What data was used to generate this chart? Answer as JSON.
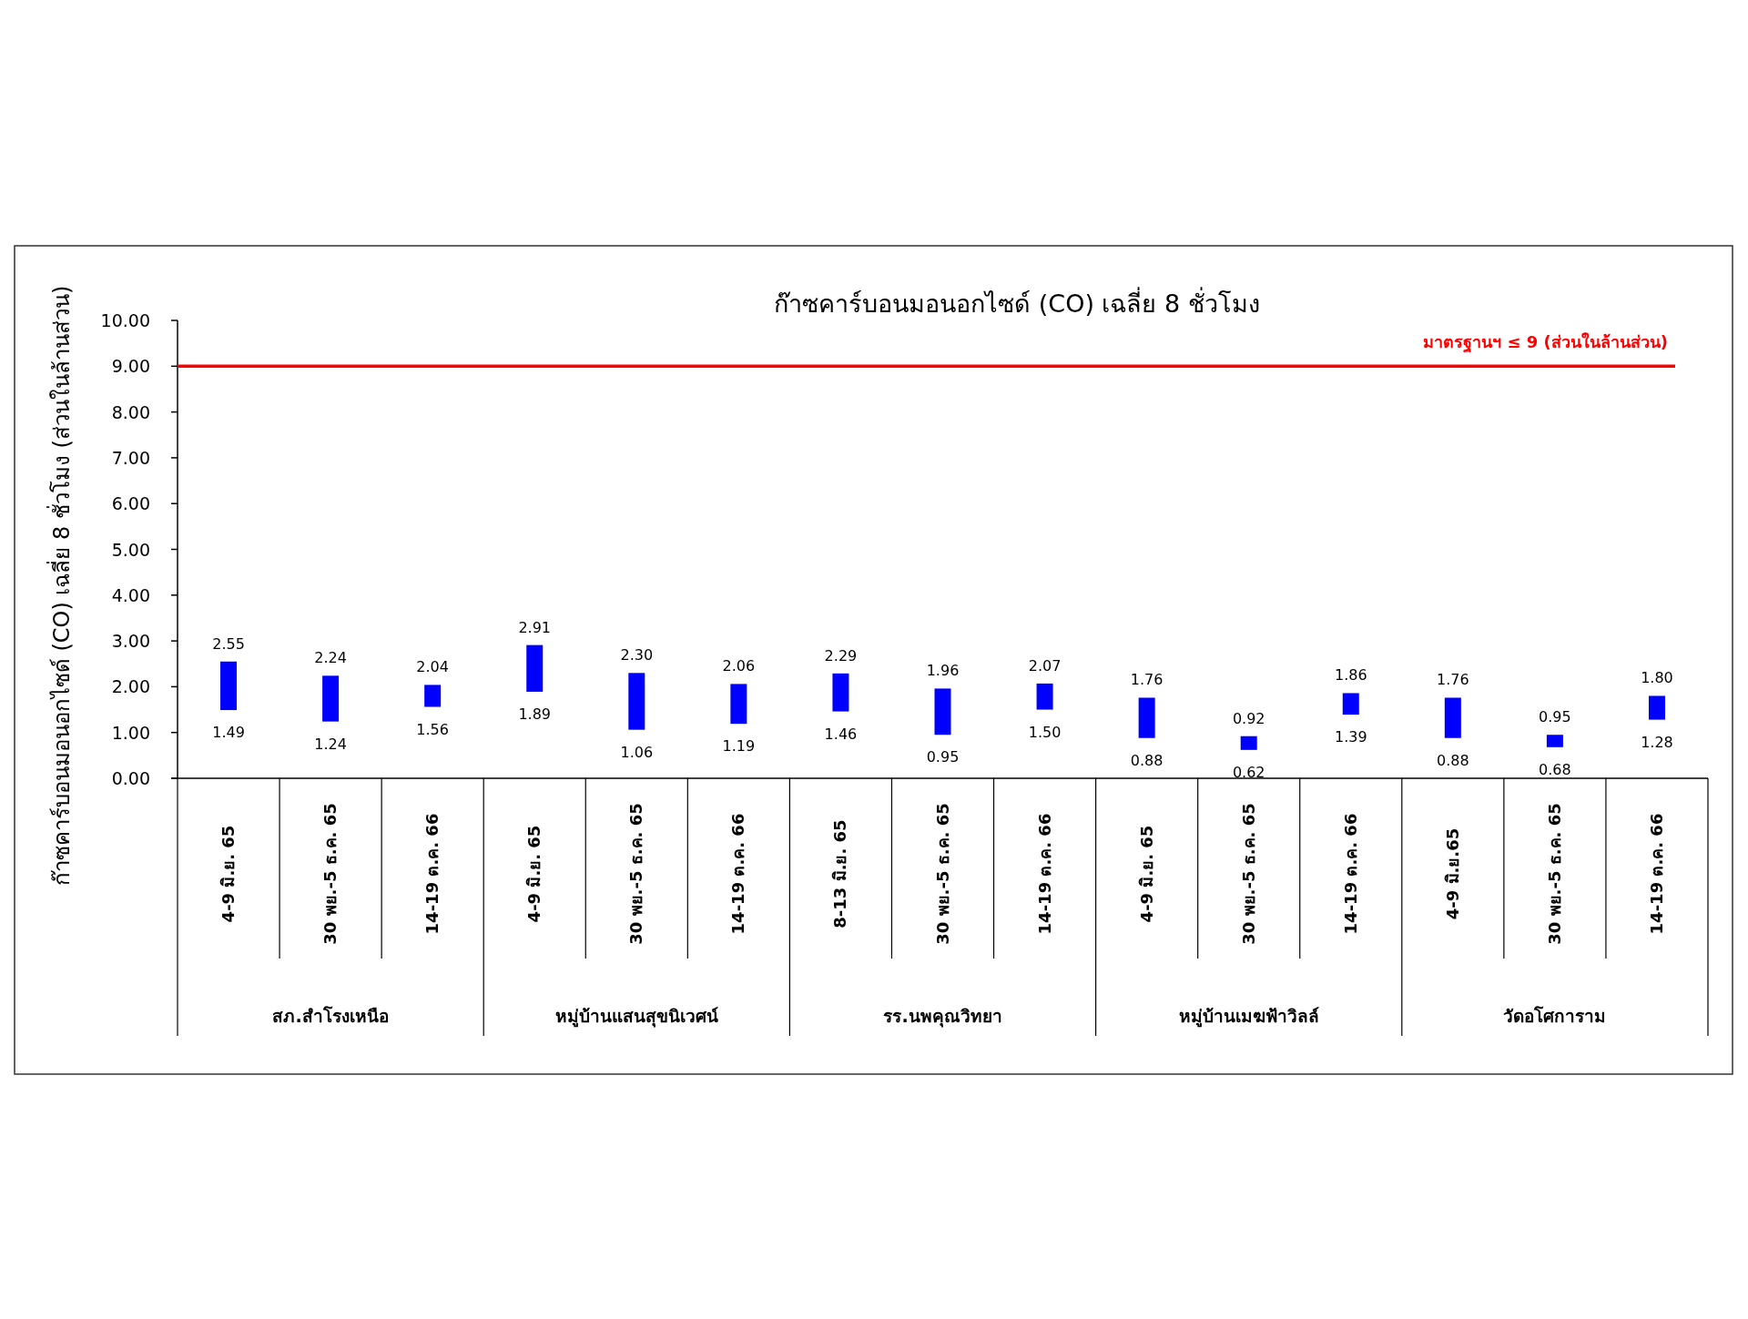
{
  "chart_data": {
    "type": "bar",
    "title": "ก๊าซคาร์บอนมอนอกไซด์ (CO) เฉลี่ย 8 ชั่วโมง",
    "ylabel": "ก๊าซคาร์บอนมอนอกไซด์ (CO) เฉลี่ย 8 ชั่วโมง (ส่วนในล้านส่วน)",
    "categories": [
      "4-9 มิ.ย. 65",
      "30 พย.-5 ธ.ค. 65",
      "14-19 ต.ค. 66",
      "4-9 มิ.ย. 65",
      "30 พย.-5 ธ.ค. 65",
      "14-19 ต.ค. 66",
      "8-13 มิ.ย. 65",
      "30 พย.-5 ธ.ค. 65",
      "14-19 ต.ค. 66",
      "4-9 มิ.ย. 65",
      "30 พย.-5 ธ.ค. 65",
      "14-19 ต.ค. 66",
      "4-9 มิ.ย.65",
      "30 พย.-5 ธ.ค. 65",
      "14-19 ต.ค. 66"
    ],
    "base": [
      1.49,
      1.24,
      1.56,
      1.89,
      1.06,
      1.19,
      1.46,
      0.95,
      1.5,
      0.88,
      0.62,
      1.39,
      0.88,
      0.68,
      1.28
    ],
    "values": [
      1.06,
      1.0,
      0.48,
      1.02,
      1.24,
      0.87,
      0.83,
      1.01,
      0.57,
      0.88,
      0.3,
      0.47,
      0.88,
      0.27,
      0.52
    ],
    "value_labels": [
      "2.55",
      "2.24",
      "2.04",
      "2.91",
      "2.30",
      "2.06",
      "2.29",
      "1.96",
      "2.07",
      "1.76",
      "0.92",
      "1.86",
      "1.76",
      "0.95",
      "1.80"
    ],
    "color": "#0000ff",
    "ylim": [
      0,
      10
    ],
    "yticks": [
      {
        "value": 0,
        "label": "0.00"
      },
      {
        "value": 1,
        "label": "1.00"
      },
      {
        "value": 2,
        "label": "2.00"
      },
      {
        "value": 3,
        "label": "3.00"
      },
      {
        "value": 4,
        "label": "4.00"
      },
      {
        "value": 5,
        "label": "5.00"
      },
      {
        "value": 6,
        "label": "6.00"
      },
      {
        "value": 7,
        "label": "7.00"
      },
      {
        "value": 8,
        "label": "8.00"
      },
      {
        "value": 9,
        "label": "9.00"
      },
      {
        "value": 10,
        "label": "10.00"
      }
    ],
    "ref_lines": [
      {
        "axis": "y",
        "value": 9,
        "label": "มาตรฐานฯ ≤ 9 (ส่วนในล้านส่วน)",
        "color": "#ff0000"
      }
    ],
    "grid": false,
    "annotations": [
      "สภ.สำโรงเหนือ",
      "หมู่บ้านแสนสุขนิเวศน์",
      "รร.นพคุณวิทยา",
      "หมู่บ้านเมฆฟ้าวิลล์",
      "วัดอโศการาม",
      "1.49",
      "1.24",
      "1.56",
      "1.89",
      "1.06",
      "1.19",
      "1.46",
      "0.95",
      "1.50",
      "0.88",
      "0.62",
      "1.39",
      "0.88",
      "0.68",
      "1.28"
    ]
  }
}
